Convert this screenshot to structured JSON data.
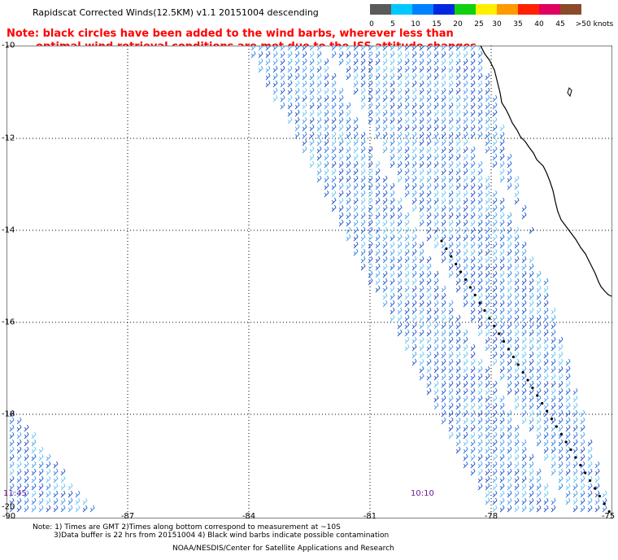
{
  "title": "Rapidscat Corrected Winds(12.5KM) v1.1 20151004 descending",
  "note": {
    "line1": "Note: black circles have been added to the wind barbs, wherever less than",
    "line2": "optimal wind retrieval conditions are met due to the ISS attitude changes."
  },
  "colorscale": {
    "labels": [
      "0",
      "5",
      "10",
      "15",
      "20",
      "25",
      "30",
      "35",
      "40",
      "45",
      ">50 knots"
    ],
    "colors": [
      "#5a5a5a",
      "#00c8ff",
      "#0080ff",
      "#0028e0",
      "#10d010",
      "#ffee00",
      "#ff9900",
      "#ff2000",
      "#e00060",
      "#8a4b2a",
      "#e000e0",
      "#6a00c8"
    ]
  },
  "axes": {
    "lat_labels": [
      "-10",
      "-12",
      "-14",
      "-16",
      "-18",
      "-20"
    ],
    "lon_labels": [
      "-90",
      "-87",
      "-84",
      "-81",
      "-78",
      "-75"
    ]
  },
  "pass_times": [
    "11:45",
    "10:10"
  ],
  "footnotes": {
    "line1": "Note: 1) Times are GMT 2)Times along bottom correspond to measurement at ~10S",
    "line2": "3)Data buffer is 22 hrs from 20151004 4) Black wind barbs indicate possible contamination",
    "line3": "NOAA/NESDIS/Center for Satellite Applications and Research"
  }
}
